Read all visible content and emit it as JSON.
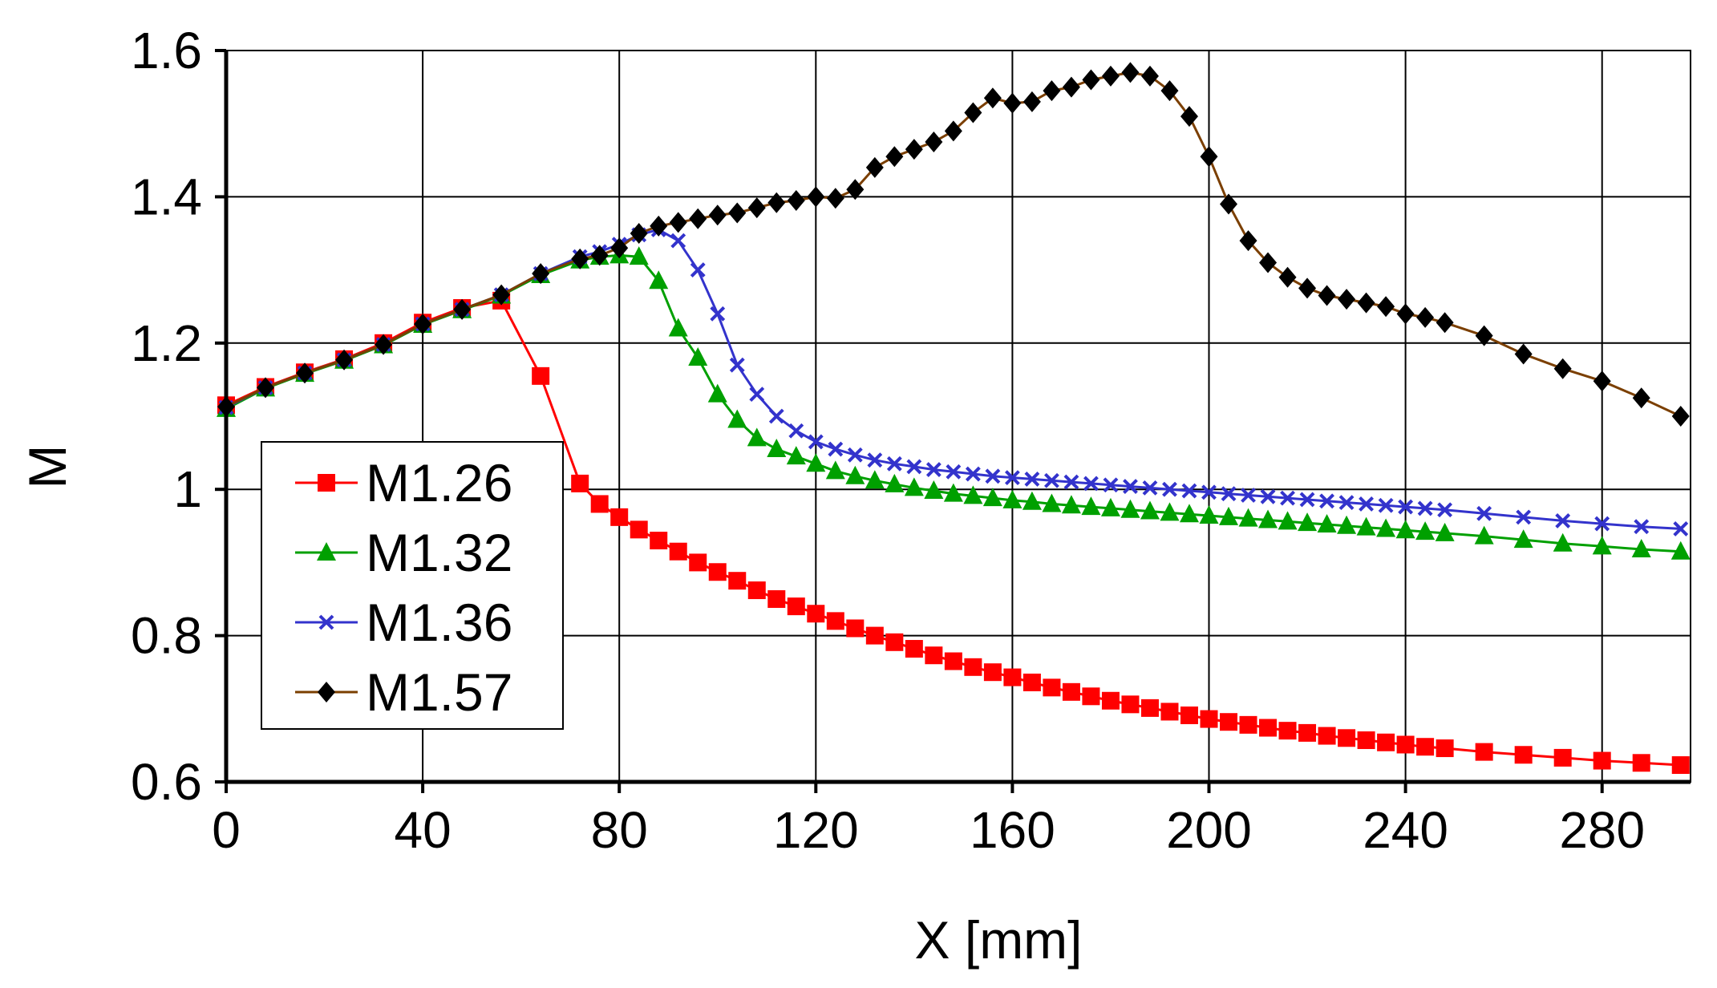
{
  "chart_data": {
    "type": "line",
    "title": "",
    "xlabel": "X [mm]",
    "ylabel": "M",
    "xlim": [
      0,
      298
    ],
    "ylim": [
      0.6,
      1.6
    ],
    "xticks": [
      0,
      40,
      80,
      120,
      160,
      200,
      240,
      280
    ],
    "yticks": [
      0.6,
      0.8,
      1,
      1.2,
      1.4,
      1.6
    ],
    "xtick_labels": [
      "0",
      "40",
      "80",
      "120",
      "160",
      "200",
      "240",
      "280"
    ],
    "ytick_labels": [
      "0.6",
      "0.8",
      "1",
      "1.2",
      "1.4",
      "1.6"
    ],
    "grid": true,
    "legend_position": "left-middle",
    "series": [
      {
        "name": "M1.26",
        "color": "#ff0000",
        "marker": "square",
        "x": [
          0,
          8,
          16,
          24,
          32,
          40,
          48,
          56,
          64,
          72,
          76,
          80,
          84,
          88,
          92,
          96,
          100,
          104,
          108,
          112,
          116,
          120,
          124,
          128,
          132,
          136,
          140,
          144,
          148,
          152,
          156,
          160,
          164,
          168,
          172,
          176,
          180,
          184,
          188,
          192,
          196,
          200,
          204,
          208,
          212,
          216,
          220,
          224,
          228,
          232,
          236,
          240,
          244,
          248,
          256,
          264,
          272,
          280,
          288,
          296
        ],
        "y": [
          1.115,
          1.14,
          1.16,
          1.178,
          1.2,
          1.228,
          1.248,
          1.258,
          1.155,
          1.008,
          0.98,
          0.962,
          0.945,
          0.93,
          0.915,
          0.9,
          0.887,
          0.875,
          0.862,
          0.85,
          0.84,
          0.83,
          0.82,
          0.81,
          0.8,
          0.791,
          0.782,
          0.773,
          0.765,
          0.757,
          0.75,
          0.743,
          0.736,
          0.729,
          0.723,
          0.717,
          0.711,
          0.706,
          0.701,
          0.696,
          0.691,
          0.686,
          0.682,
          0.678,
          0.674,
          0.67,
          0.667,
          0.663,
          0.66,
          0.657,
          0.654,
          0.651,
          0.648,
          0.646,
          0.641,
          0.637,
          0.633,
          0.629,
          0.626,
          0.623
        ]
      },
      {
        "name": "M1.32",
        "color": "#00a000",
        "marker": "triangle",
        "x": [
          0,
          8,
          16,
          24,
          32,
          40,
          48,
          56,
          64,
          72,
          76,
          80,
          84,
          88,
          92,
          96,
          100,
          104,
          108,
          112,
          116,
          120,
          124,
          128,
          132,
          136,
          140,
          144,
          148,
          152,
          156,
          160,
          164,
          168,
          172,
          176,
          180,
          184,
          188,
          192,
          196,
          200,
          204,
          208,
          212,
          216,
          220,
          224,
          228,
          232,
          236,
          240,
          244,
          248,
          256,
          264,
          272,
          280,
          288,
          296
        ],
        "y": [
          1.11,
          1.138,
          1.158,
          1.176,
          1.197,
          1.225,
          1.245,
          1.265,
          1.293,
          1.313,
          1.318,
          1.32,
          1.318,
          1.285,
          1.22,
          1.18,
          1.13,
          1.095,
          1.07,
          1.055,
          1.045,
          1.035,
          1.025,
          1.018,
          1.012,
          1.007,
          1.002,
          0.998,
          0.994,
          0.991,
          0.988,
          0.985,
          0.983,
          0.98,
          0.978,
          0.976,
          0.974,
          0.972,
          0.97,
          0.968,
          0.966,
          0.964,
          0.962,
          0.96,
          0.958,
          0.956,
          0.954,
          0.952,
          0.95,
          0.948,
          0.946,
          0.944,
          0.942,
          0.94,
          0.936,
          0.931,
          0.926,
          0.922,
          0.918,
          0.915
        ]
      },
      {
        "name": "M1.36",
        "color": "#3333cc",
        "marker": "x",
        "x": [
          0,
          8,
          16,
          24,
          32,
          40,
          48,
          56,
          64,
          72,
          76,
          80,
          84,
          88,
          92,
          96,
          100,
          104,
          108,
          112,
          116,
          120,
          124,
          128,
          132,
          136,
          140,
          144,
          148,
          152,
          156,
          160,
          164,
          168,
          172,
          176,
          180,
          184,
          188,
          192,
          196,
          200,
          204,
          208,
          212,
          216,
          220,
          224,
          228,
          232,
          236,
          240,
          244,
          248,
          256,
          264,
          272,
          280,
          288,
          296
        ],
        "y": [
          1.112,
          1.139,
          1.159,
          1.177,
          1.198,
          1.226,
          1.246,
          1.266,
          1.295,
          1.318,
          1.325,
          1.335,
          1.348,
          1.355,
          1.34,
          1.3,
          1.24,
          1.17,
          1.13,
          1.1,
          1.08,
          1.065,
          1.055,
          1.047,
          1.04,
          1.035,
          1.031,
          1.027,
          1.024,
          1.021,
          1.018,
          1.016,
          1.014,
          1.012,
          1.01,
          1.008,
          1.006,
          1.004,
          1.002,
          1.0,
          0.998,
          0.996,
          0.994,
          0.992,
          0.99,
          0.988,
          0.986,
          0.984,
          0.982,
          0.98,
          0.978,
          0.976,
          0.974,
          0.972,
          0.967,
          0.962,
          0.957,
          0.953,
          0.949,
          0.946
        ]
      },
      {
        "name": "M1.57",
        "color": "#000000",
        "line_color": "#7b3f00",
        "marker": "diamond",
        "x": [
          0,
          8,
          16,
          24,
          32,
          40,
          48,
          56,
          64,
          72,
          76,
          80,
          84,
          88,
          92,
          96,
          100,
          104,
          108,
          112,
          116,
          120,
          124,
          128,
          132,
          136,
          140,
          144,
          148,
          152,
          156,
          160,
          164,
          168,
          172,
          176,
          180,
          184,
          188,
          192,
          196,
          200,
          204,
          208,
          212,
          216,
          220,
          224,
          228,
          232,
          236,
          240,
          244,
          248,
          256,
          264,
          272,
          280,
          288,
          296
        ],
        "y": [
          1.113,
          1.139,
          1.159,
          1.177,
          1.198,
          1.226,
          1.246,
          1.266,
          1.295,
          1.315,
          1.32,
          1.33,
          1.35,
          1.36,
          1.365,
          1.37,
          1.375,
          1.378,
          1.385,
          1.392,
          1.395,
          1.4,
          1.398,
          1.41,
          1.44,
          1.455,
          1.465,
          1.475,
          1.49,
          1.515,
          1.535,
          1.528,
          1.53,
          1.545,
          1.55,
          1.56,
          1.565,
          1.57,
          1.565,
          1.545,
          1.51,
          1.455,
          1.39,
          1.34,
          1.31,
          1.29,
          1.275,
          1.265,
          1.26,
          1.255,
          1.25,
          1.24,
          1.235,
          1.228,
          1.21,
          1.185,
          1.165,
          1.148,
          1.125,
          1.1
        ]
      }
    ]
  }
}
